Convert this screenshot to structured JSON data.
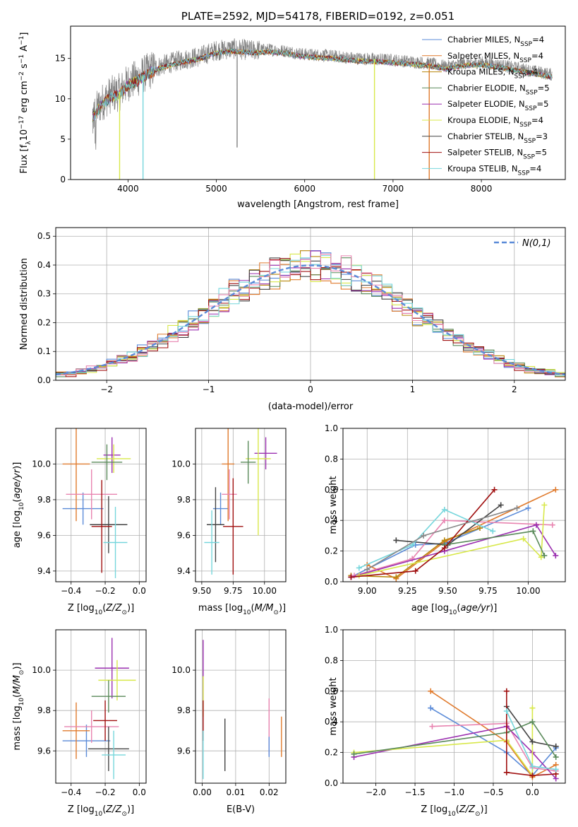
{
  "chart_data": [
    {
      "id": "spectrum",
      "type": "line",
      "title": "PLATE=2592, MJD=54178, FIBERID=0192, z=0.051",
      "xlabel": "wavelength [Angstrom, rest frame]",
      "ylabel": "Flux [f_λ10^-17 erg cm^-2 s^-1 A^-1]",
      "xlim": [
        3350,
        8950
      ],
      "ylim": [
        0,
        19
      ],
      "xticks": [
        4000,
        5000,
        6000,
        7000,
        8000
      ],
      "yticks": [
        0,
        5,
        10,
        15
      ],
      "legend_position": "top-right",
      "data_envelope": {
        "x": [
          3600,
          3700,
          3800,
          3900,
          4000,
          4100,
          4200,
          4300,
          4400,
          4600,
          4800,
          5000,
          5200,
          5400,
          5600,
          5800,
          6000,
          6200,
          6400,
          6600,
          6800,
          7000,
          7200,
          7400,
          7600,
          7800,
          8000,
          8200,
          8400,
          8600,
          8800
        ],
        "y": [
          8.0,
          9.5,
          10.5,
          10.8,
          12.0,
          12.5,
          13.2,
          13.8,
          14.2,
          14.8,
          15.2,
          16.0,
          16.2,
          16.0,
          16.1,
          15.9,
          15.5,
          15.4,
          15.2,
          15.0,
          14.9,
          14.8,
          14.6,
          14.4,
          14.0,
          14.4,
          14.5,
          14.2,
          13.8,
          13.4,
          13.0
        ]
      },
      "series": [
        {
          "name": "Chabrier MILES, N_SSP=4",
          "color": "#5b8bd8"
        },
        {
          "name": "Salpeter MILES, N_SSP=4",
          "color": "#e07b2e"
        },
        {
          "name": "Kroupa MILES, N_SSP=4",
          "color": "#b8860b"
        },
        {
          "name": "Chabrier ELODIE, N_SSP=5",
          "color": "#5a8a5a"
        },
        {
          "name": "Salpeter ELODIE, N_SSP=5",
          "color": "#9b30b0"
        },
        {
          "name": "Kroupa ELODIE, N_SSP=4",
          "color": "#d8e84a"
        },
        {
          "name": "Chabrier STELIB, N_SSP=3",
          "color": "#444444"
        },
        {
          "name": "Salpeter STELIB, N_SSP=5",
          "color": "#a01010"
        },
        {
          "name": "Kroupa STELIB, N_SSP=4",
          "color": "#76d6dc"
        }
      ]
    },
    {
      "id": "residuals",
      "type": "line",
      "xlabel": "(data-model)/error",
      "ylabel": "Normed distribution",
      "xlim": [
        -2.5,
        2.5
      ],
      "ylim": [
        0,
        0.53
      ],
      "xticks": [
        -2,
        -1,
        0,
        1,
        2
      ],
      "yticks": [
        0.0,
        0.1,
        0.2,
        0.3,
        0.4,
        0.5
      ],
      "legend": "N(0,1)",
      "legend_position": "top-right",
      "gaussian_color": "#5b8bd8",
      "series_colors": [
        "#5b8bd8",
        "#e07b2e",
        "#b8860b",
        "#5a8a5a",
        "#9b30b0",
        "#d8e84a",
        "#444444",
        "#a01010",
        "#76d6dc",
        "#e884b0"
      ]
    },
    {
      "id": "Z-age",
      "type": "scatter",
      "xlabel": "Z [log10(Z/Z⊙)]",
      "ylabel": "age [log10(age/yr)]",
      "xlim": [
        -0.49,
        0.04
      ],
      "ylim": [
        9.34,
        10.2
      ],
      "xticks": [
        -0.4,
        -0.2,
        0.0
      ],
      "xticklabels": [
        "−0.4",
        "−0.2",
        "0.0"
      ],
      "yticks": [
        9.4,
        9.6,
        9.8,
        10.0
      ],
      "points": [
        {
          "x": -0.33,
          "y": 9.75,
          "xerr": 0.12,
          "yerr": 0.09,
          "color": "#5b8bd8"
        },
        {
          "x": -0.37,
          "y": 10.0,
          "xerr": 0.08,
          "yerr": 0.32,
          "color": "#e07b2e"
        },
        {
          "x": -0.16,
          "y": 10.05,
          "xerr": 0.05,
          "yerr": 0.1,
          "color": "#9b30b0"
        },
        {
          "x": -0.15,
          "y": 10.03,
          "xerr": 0.1,
          "yerr": 0.08,
          "color": "#d8e84a"
        },
        {
          "x": -0.19,
          "y": 10.01,
          "xerr": 0.09,
          "yerr": 0.1,
          "color": "#5a8a5a"
        },
        {
          "x": -0.28,
          "y": 9.83,
          "xerr": 0.15,
          "yerr": 0.14,
          "color": "#e884b0"
        },
        {
          "x": -0.18,
          "y": 9.66,
          "xerr": 0.11,
          "yerr": 0.16,
          "color": "#444444"
        },
        {
          "x": -0.22,
          "y": 9.65,
          "xerr": 0.06,
          "yerr": 0.26,
          "color": "#a01010"
        },
        {
          "x": -0.14,
          "y": 9.56,
          "xerr": 0.07,
          "yerr": 0.2,
          "color": "#76d6dc"
        }
      ]
    },
    {
      "id": "mass-age",
      "type": "scatter",
      "xlabel": "mass [log10(M/M⊙)]",
      "xlim": [
        9.45,
        10.17
      ],
      "ylim": [
        9.34,
        10.2
      ],
      "xticks": [
        9.5,
        9.75,
        10.0
      ],
      "xticklabels": [
        "9.50",
        "9.75",
        "10.00"
      ],
      "yticks": [
        9.4,
        9.6,
        9.8,
        10.0
      ],
      "points": [
        {
          "x": 9.65,
          "y": 9.75,
          "xerr": 0.06,
          "yerr": 0.09,
          "color": "#5b8bd8"
        },
        {
          "x": 9.71,
          "y": 10.0,
          "xerr": 0.05,
          "yerr": 0.32,
          "color": "#e07b2e"
        },
        {
          "x": 10.01,
          "y": 10.06,
          "xerr": 0.09,
          "yerr": 0.09,
          "color": "#9b30b0"
        },
        {
          "x": 9.95,
          "y": 10.03,
          "xerr": 0.1,
          "yerr": 0.43,
          "color": "#d8e84a"
        },
        {
          "x": 9.87,
          "y": 10.01,
          "xerr": 0.06,
          "yerr": 0.12,
          "color": "#5a8a5a"
        },
        {
          "x": 9.72,
          "y": 9.83,
          "xerr": 0.06,
          "yerr": 0.14,
          "color": "#e884b0"
        },
        {
          "x": 9.61,
          "y": 9.66,
          "xerr": 0.07,
          "yerr": 0.21,
          "color": "#444444"
        },
        {
          "x": 9.75,
          "y": 9.65,
          "xerr": 0.08,
          "yerr": 0.27,
          "color": "#a01010"
        },
        {
          "x": 9.58,
          "y": 9.56,
          "xerr": 0.06,
          "yerr": 0.18,
          "color": "#76d6dc"
        }
      ]
    },
    {
      "id": "age-weight",
      "type": "line",
      "xlabel": "age [log10(age/yr)]",
      "ylabel": "mass weight",
      "xlim": [
        8.85,
        10.23
      ],
      "ylim": [
        0,
        1.0
      ],
      "xticks": [
        9.0,
        9.25,
        9.5,
        9.75,
        10.0
      ],
      "xticklabels": [
        "9.00",
        "9.25",
        "9.50",
        "9.75",
        "10.00"
      ],
      "yticks": [
        0.0,
        0.2,
        0.4,
        0.6,
        0.8,
        1.0
      ],
      "series": [
        {
          "color": "#5b8bd8",
          "x": [
            8.9,
            9.3,
            9.48,
            10.0
          ],
          "y": [
            0.03,
            0.24,
            0.25,
            0.48
          ]
        },
        {
          "color": "#e07b2e",
          "x": [
            9.0,
            9.18,
            9.48,
            10.17
          ],
          "y": [
            0.11,
            0.02,
            0.26,
            0.6
          ]
        },
        {
          "color": "#b8860b",
          "x": [
            8.9,
            9.18,
            9.48,
            9.7
          ],
          "y": [
            0.04,
            0.03,
            0.27,
            0.35
          ]
        },
        {
          "color": "#e884b0",
          "x": [
            8.92,
            9.28,
            9.48,
            10.15
          ],
          "y": [
            0.04,
            0.15,
            0.4,
            0.37
          ]
        },
        {
          "color": "#9b30b0",
          "x": [
            8.9,
            9.48,
            10.05,
            10.17
          ],
          "y": [
            0.03,
            0.2,
            0.37,
            0.17
          ]
        },
        {
          "color": "#d8e84a",
          "x": [
            8.95,
            9.97,
            10.08,
            10.1
          ],
          "y": [
            0.04,
            0.28,
            0.16,
            0.5
          ]
        },
        {
          "color": "#444444",
          "x": [
            9.18,
            9.5,
            9.83
          ],
          "y": [
            0.27,
            0.24,
            0.5
          ]
        },
        {
          "color": "#5a8a5a",
          "x": [
            9.48,
            10.03,
            10.1
          ],
          "y": [
            0.24,
            0.33,
            0.17
          ]
        },
        {
          "color": "#a01010",
          "x": [
            8.9,
            9.3,
            9.48,
            9.79
          ],
          "y": [
            0.03,
            0.07,
            0.22,
            0.6
          ]
        },
        {
          "color": "#76d6dc",
          "x": [
            8.95,
            9.28,
            9.48,
            9.78
          ],
          "y": [
            0.09,
            0.24,
            0.47,
            0.33
          ]
        },
        {
          "color": "#888888",
          "x": [
            9.0,
            9.35,
            9.93
          ],
          "y": [
            0.08,
            0.3,
            0.48
          ]
        }
      ]
    },
    {
      "id": "Z-mass",
      "type": "scatter",
      "xlabel": "Z [log10(Z/Z⊙)]",
      "ylabel": "mass [log10(M/M⊙)]",
      "xlim": [
        -0.49,
        0.04
      ],
      "ylim": [
        9.44,
        10.2
      ],
      "xticks": [
        -0.4,
        -0.2,
        0.0
      ],
      "xticklabels": [
        "−0.4",
        "−0.2",
        "0.0"
      ],
      "yticks": [
        9.6,
        9.8,
        10.0
      ],
      "points": [
        {
          "x": -0.31,
          "y": 9.65,
          "xerr": 0.14,
          "yerr": 0.08,
          "color": "#5b8bd8"
        },
        {
          "x": -0.37,
          "y": 9.7,
          "xerr": 0.08,
          "yerr": 0.14,
          "color": "#e07b2e"
        },
        {
          "x": -0.16,
          "y": 10.01,
          "xerr": 0.1,
          "yerr": 0.15,
          "color": "#9b30b0"
        },
        {
          "x": -0.13,
          "y": 9.95,
          "xerr": 0.11,
          "yerr": 0.1,
          "color": "#d8e84a"
        },
        {
          "x": -0.18,
          "y": 9.87,
          "xerr": 0.1,
          "yerr": 0.08,
          "color": "#5a8a5a"
        },
        {
          "x": -0.28,
          "y": 9.72,
          "xerr": 0.16,
          "yerr": 0.08,
          "color": "#e884b0"
        },
        {
          "x": -0.18,
          "y": 9.61,
          "xerr": 0.12,
          "yerr": 0.11,
          "color": "#444444"
        },
        {
          "x": -0.2,
          "y": 9.75,
          "xerr": 0.07,
          "yerr": 0.1,
          "color": "#a01010"
        },
        {
          "x": -0.15,
          "y": 9.58,
          "xerr": 0.07,
          "yerr": 0.12,
          "color": "#76d6dc"
        }
      ]
    },
    {
      "id": "ebv-mass",
      "type": "scatter",
      "xlabel": "E(B-V)",
      "xlim": [
        -0.002,
        0.025
      ],
      "ylim": [
        9.44,
        10.2
      ],
      "xticks": [
        0.0,
        0.01,
        0.02
      ],
      "xticklabels": [
        "0.00",
        "0.01",
        "0.02"
      ],
      "yticks": [
        9.6,
        9.8,
        10.0
      ],
      "points": [
        {
          "x": 0.0003,
          "y": 10.0,
          "yerr": 0.15,
          "color": "#9b30b0"
        },
        {
          "x": 0.0003,
          "y": 9.87,
          "yerr": 0.1,
          "color": "#d8e84a"
        },
        {
          "x": 0.0003,
          "y": 9.75,
          "yerr": 0.1,
          "color": "#a01010"
        },
        {
          "x": 0.0003,
          "y": 9.58,
          "yerr": 0.12,
          "color": "#76d6dc"
        },
        {
          "x": 0.0068,
          "y": 9.63,
          "yerr": 0.13,
          "color": "#444444"
        },
        {
          "x": 0.02,
          "y": 9.72,
          "yerr": 0.14,
          "color": "#e884b0"
        },
        {
          "x": 0.02,
          "y": 9.62,
          "yerr": 0.05,
          "color": "#5b8bd8"
        },
        {
          "x": 0.0237,
          "y": 9.67,
          "yerr": 0.1,
          "color": "#e07b2e"
        }
      ]
    },
    {
      "id": "Z-weight",
      "type": "line",
      "xlabel": "Z [log10(Z/Z⊙)]",
      "ylabel": "mass weight",
      "xlim": [
        -2.42,
        0.42
      ],
      "ylim": [
        0,
        1.0
      ],
      "xticks": [
        -2.0,
        -1.5,
        -1.0,
        -0.5,
        0.0
      ],
      "xticklabels": [
        "−2.0",
        "−1.5",
        "−1.0",
        "−0.5",
        "0.0"
      ],
      "yticks": [
        0.0,
        0.2,
        0.4,
        0.6,
        0.8,
        1.0
      ],
      "series": [
        {
          "color": "#5b8bd8",
          "x": [
            -1.3,
            -0.33,
            0.0,
            0.3
          ],
          "y": [
            0.49,
            0.2,
            0.05,
            0.23
          ]
        },
        {
          "color": "#e07b2e",
          "x": [
            -1.3,
            -0.33,
            0.0,
            0.3
          ],
          "y": [
            0.6,
            0.27,
            0.04,
            0.12
          ]
        },
        {
          "color": "#e884b0",
          "x": [
            -1.28,
            -0.33,
            0.0,
            0.3
          ],
          "y": [
            0.37,
            0.39,
            0.1,
            0.08
          ]
        },
        {
          "color": "#9b30b0",
          "x": [
            -2.28,
            -0.33,
            0.0,
            0.3
          ],
          "y": [
            0.17,
            0.37,
            0.2,
            0.03
          ]
        },
        {
          "color": "#d8e84a",
          "x": [
            -2.28,
            -0.33,
            0.0,
            0.0
          ],
          "y": [
            0.2,
            0.28,
            0.05,
            0.49
          ]
        },
        {
          "color": "#444444",
          "x": [
            -0.33,
            0.0,
            0.3
          ],
          "y": [
            0.5,
            0.27,
            0.24
          ]
        },
        {
          "color": "#5a8a5a",
          "x": [
            -2.28,
            -0.33,
            0.0,
            0.3
          ],
          "y": [
            0.19,
            0.33,
            0.4,
            0.17
          ]
        },
        {
          "color": "#a01010",
          "x": [
            -0.33,
            -0.33,
            0.0,
            0.3
          ],
          "y": [
            0.6,
            0.07,
            0.05,
            0.06
          ]
        },
        {
          "color": "#76d6dc",
          "x": [
            -0.33,
            0.0,
            0.3
          ],
          "y": [
            0.47,
            0.11,
            0.09
          ]
        }
      ]
    }
  ]
}
